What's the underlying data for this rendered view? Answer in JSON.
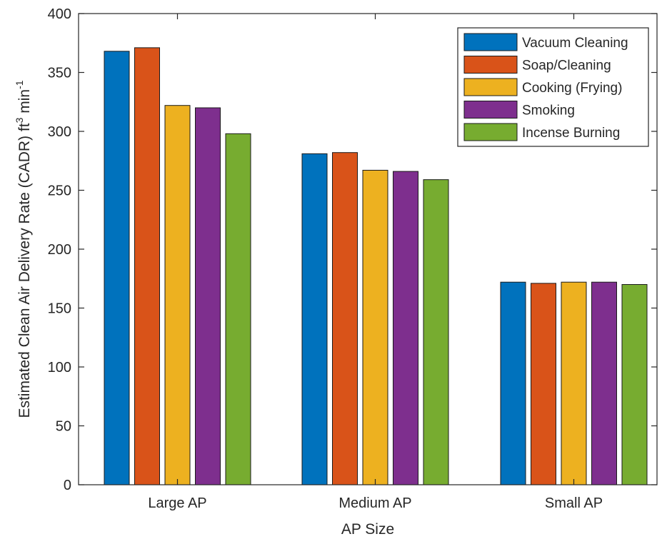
{
  "chart_data": {
    "type": "bar",
    "title": "",
    "xlabel": "AP Size",
    "ylabel": "Estimated Clean Air Delivery Rate (CADR) ft³ min⁻¹",
    "ylabel_parts": {
      "main": "Estimated Clean Air Delivery Rate (CADR) ft",
      "sup1": "3",
      "mid": " min",
      "sup2": "-1"
    },
    "categories": [
      "Large AP",
      "Medium AP",
      "Small AP"
    ],
    "ylim": [
      0,
      400
    ],
    "yticks": [
      0,
      50,
      100,
      150,
      200,
      250,
      300,
      350,
      400
    ],
    "grid": false,
    "legend_position": "top-right",
    "series": [
      {
        "name": "Vacuum Cleaning",
        "color": "#0072BD",
        "values": [
          368,
          281,
          172
        ]
      },
      {
        "name": "Soap/Cleaning",
        "color": "#D95319",
        "values": [
          371,
          282,
          171
        ]
      },
      {
        "name": "Cooking (Frying)",
        "color": "#EDB120",
        "values": [
          322,
          267,
          172
        ]
      },
      {
        "name": "Smoking",
        "color": "#7E2F8E",
        "values": [
          320,
          266,
          172
        ]
      },
      {
        "name": "Incense Burning",
        "color": "#77AC30",
        "values": [
          298,
          259,
          170
        ]
      }
    ]
  }
}
